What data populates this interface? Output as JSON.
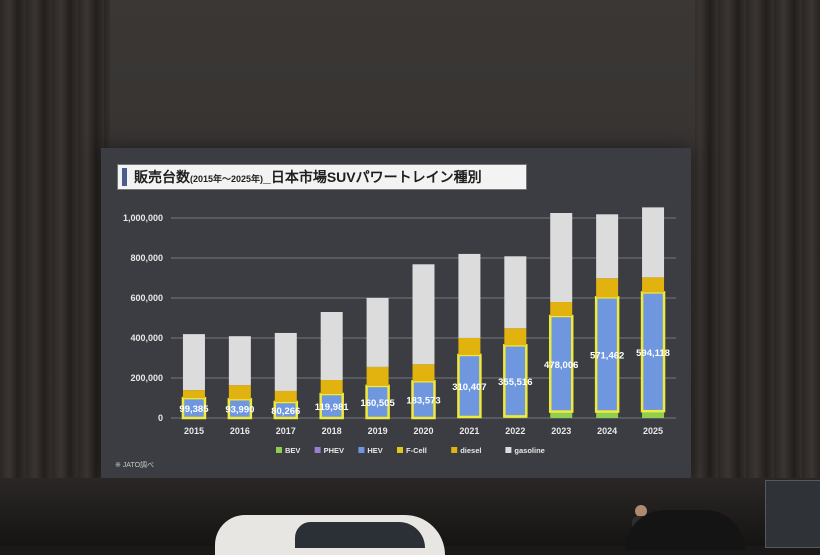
{
  "slide": {
    "title_main": "販売台数",
    "title_period": "(2015年～2025年)",
    "title_rest": "_日本市場SUVパワートレイン種別",
    "footnote": "※ JATO調べ"
  },
  "chart_data": {
    "type": "bar",
    "stacked": true,
    "categories": [
      "2015",
      "2016",
      "2017",
      "2018",
      "2019",
      "2020",
      "2021",
      "2022",
      "2023",
      "2024",
      "2025"
    ],
    "ylim": [
      0,
      1000000
    ],
    "yticks": [
      "0",
      "200,000",
      "400,000",
      "600,000",
      "800,000",
      "1,000,000"
    ],
    "ytick_values": [
      0,
      200000,
      400000,
      600000,
      800000,
      1000000
    ],
    "grid": true,
    "legend_position": "bottom",
    "series": [
      {
        "name": "BEV",
        "color": "#8fcf4f",
        "values": [
          0,
          0,
          0,
          0,
          0,
          0,
          3000,
          5000,
          27000,
          27000,
          28000
        ]
      },
      {
        "name": "PHEV",
        "color": "#9a7fd0",
        "values": [
          0,
          0,
          0,
          0,
          0,
          0,
          2000,
          3000,
          5000,
          5000,
          6000
        ]
      },
      {
        "name": "HEV",
        "color": "#6f97e0",
        "values": [
          99385,
          93990,
          80266,
          119981,
          160505,
          183573,
          310407,
          355516,
          478006,
          571462,
          594118
        ]
      },
      {
        "name": "F-Cell",
        "color": "#e6c619",
        "values": [
          0,
          0,
          0,
          0,
          0,
          0,
          0,
          0,
          0,
          0,
          0
        ]
      },
      {
        "name": "diesel",
        "color": "#e2b20f",
        "values": [
          40000,
          70000,
          55000,
          70000,
          95000,
          85000,
          85000,
          85000,
          70000,
          95000,
          75000
        ]
      },
      {
        "name": "gasoline",
        "color": "#dcdcdc",
        "values": [
          280000,
          245000,
          290000,
          340000,
          345000,
          500000,
          420000,
          360000,
          445000,
          320000,
          350000
        ]
      }
    ],
    "data_labels": [
      "99,385",
      "93,990",
      "80,266",
      "119,981",
      "160,505",
      "183,573",
      "310,407",
      "355,516",
      "478,006",
      "571,462",
      "594,118"
    ]
  }
}
